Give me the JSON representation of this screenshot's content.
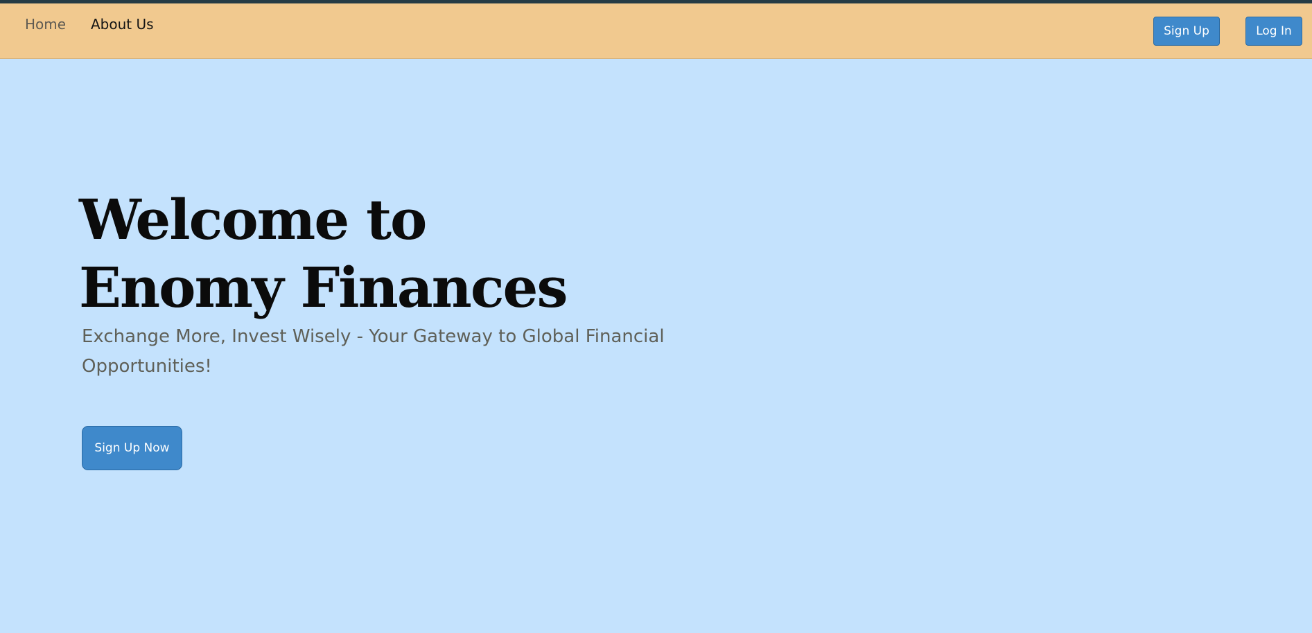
{
  "nav": {
    "links": [
      {
        "label": "Home"
      },
      {
        "label": "About Us"
      }
    ],
    "signup_label": "Sign Up",
    "login_label": "Log In"
  },
  "hero": {
    "title_line1": "Welcome to",
    "title_line2": "Enomy Finances",
    "subtitle": "Exchange More, Invest Wisely - Your Gateway to Global Financial Opportunities!",
    "cta_label": "Sign Up Now"
  },
  "colors": {
    "navbar_bg": "#f1c98f",
    "page_bg": "#c4e2fd",
    "button_bg": "#3f89cb",
    "top_strip": "#253b45"
  }
}
